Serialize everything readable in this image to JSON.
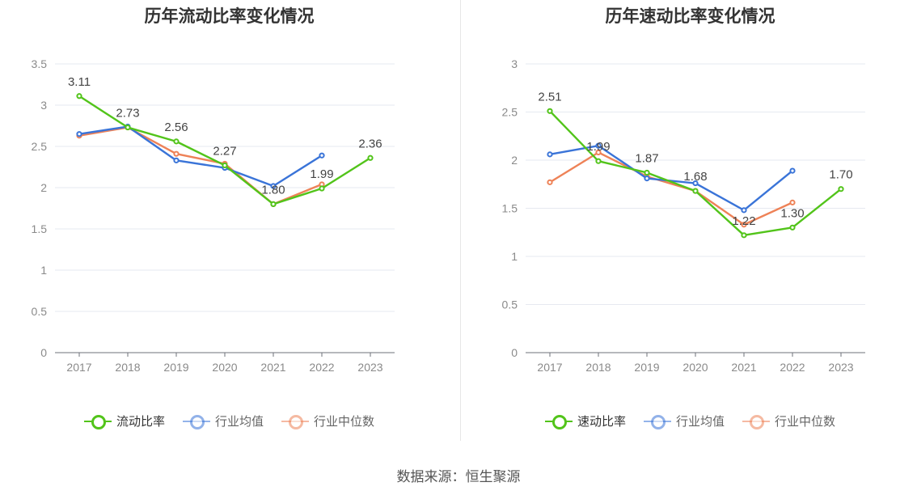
{
  "chart_data": [
    {
      "type": "line",
      "title": "历年流动比率变化情况",
      "categories": [
        "2017",
        "2018",
        "2019",
        "2020",
        "2021",
        "2022",
        "2023"
      ],
      "ylim": [
        0,
        3.5
      ],
      "yticks": [
        "0",
        "0.5",
        "1",
        "1.5",
        "2",
        "2.5",
        "3",
        "3.5"
      ],
      "grid": true,
      "legend_position": "bottom",
      "series": [
        {
          "name": "流动比率",
          "color": "#52c41a",
          "values": [
            3.11,
            2.73,
            2.56,
            2.27,
            1.8,
            1.99,
            2.36
          ],
          "labels": [
            "3.11",
            "2.73",
            "2.56",
            "2.27",
            "1.80",
            "1.99",
            "2.36"
          ]
        },
        {
          "name": "行业均值",
          "color": "#3a74d8",
          "values": [
            2.65,
            2.74,
            2.33,
            2.24,
            2.02,
            2.39,
            null
          ]
        },
        {
          "name": "行业中位数",
          "color": "#ee8257",
          "values": [
            2.63,
            2.73,
            2.41,
            2.29,
            1.8,
            2.04,
            null
          ]
        }
      ]
    },
    {
      "type": "line",
      "title": "历年速动比率变化情况",
      "categories": [
        "2017",
        "2018",
        "2019",
        "2020",
        "2021",
        "2022",
        "2023"
      ],
      "ylim": [
        0,
        3
      ],
      "yticks": [
        "0",
        "0.5",
        "1",
        "1.5",
        "2",
        "2.5",
        "3"
      ],
      "grid": true,
      "legend_position": "bottom",
      "series": [
        {
          "name": "速动比率",
          "color": "#52c41a",
          "values": [
            2.51,
            1.99,
            1.87,
            1.68,
            1.22,
            1.3,
            1.7
          ],
          "labels": [
            "2.51",
            "1.99",
            "1.87",
            "1.68",
            "1.22",
            "1.30",
            "1.70"
          ]
        },
        {
          "name": "行业均值",
          "color": "#3a74d8",
          "values": [
            2.06,
            2.15,
            1.81,
            1.76,
            1.48,
            1.89,
            null
          ]
        },
        {
          "name": "行业中位数",
          "color": "#ee8257",
          "values": [
            1.77,
            2.08,
            1.83,
            1.68,
            1.33,
            1.56,
            null
          ]
        }
      ]
    }
  ],
  "footer": {
    "source": "数据来源：恒生聚源"
  }
}
